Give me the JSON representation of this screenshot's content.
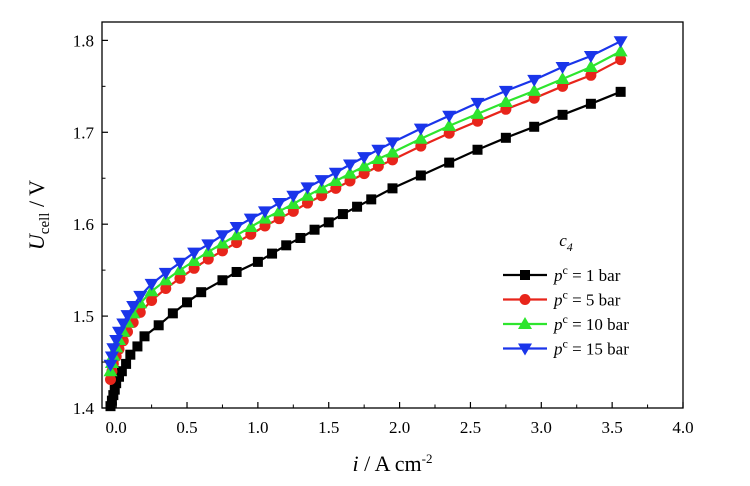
{
  "chart_data": {
    "type": "line",
    "x_axis": {
      "label_main": "i",
      "label_sep": " / ",
      "label_unit": "A cm",
      "label_exp": "-2",
      "range": [
        -0.1,
        4.0
      ],
      "ticks": [
        0.0,
        0.5,
        1.0,
        1.5,
        2.0,
        2.5,
        3.0,
        3.5,
        4.0
      ],
      "tick_labels": [
        "0.0",
        "0.5",
        "1.0",
        "1.5",
        "2.0",
        "2.5",
        "3.0",
        "3.5",
        "4.0"
      ]
    },
    "y_axis": {
      "label_main": "U",
      "label_sub": "cell",
      "label_sep": " / ",
      "label_unit": "V",
      "range": [
        1.4,
        1.82
      ],
      "ticks": [
        1.4,
        1.5,
        1.6,
        1.7,
        1.8
      ],
      "tick_labels": [
        "1.4",
        "1.5",
        "1.6",
        "1.7",
        "1.8"
      ]
    },
    "legend": {
      "title_main": "c",
      "title_sub": "4",
      "placement": "bottom-right"
    },
    "series": [
      {
        "name": "p^c = 1 bar",
        "name_main": "p",
        "name_sup": "c",
        "name_rest": " = 1 bar",
        "color": "#000000",
        "marker": "square",
        "x": [
          -0.04,
          -0.03,
          -0.02,
          -0.01,
          0.0,
          0.02,
          0.04,
          0.07,
          0.1,
          0.15,
          0.2,
          0.3,
          0.4,
          0.5,
          0.6,
          0.75,
          0.85,
          1.0,
          1.1,
          1.2,
          1.3,
          1.4,
          1.5,
          1.6,
          1.7,
          1.8,
          1.95,
          2.15,
          2.35,
          2.55,
          2.75,
          2.95,
          3.15,
          3.35,
          3.56
        ],
        "y": [
          1.402,
          1.408,
          1.414,
          1.42,
          1.427,
          1.434,
          1.44,
          1.448,
          1.458,
          1.467,
          1.478,
          1.49,
          1.503,
          1.515,
          1.526,
          1.539,
          1.548,
          1.559,
          1.568,
          1.577,
          1.585,
          1.594,
          1.602,
          1.611,
          1.619,
          1.627,
          1.639,
          1.653,
          1.667,
          1.681,
          1.694,
          1.706,
          1.719,
          1.731,
          1.744
        ]
      },
      {
        "name": "p^c = 5 bar",
        "name_main": "p",
        "name_sup": "c",
        "name_rest": " = 5 bar",
        "color": "#e8251b",
        "marker": "circle",
        "x": [
          -0.04,
          -0.03,
          -0.02,
          0.0,
          0.02,
          0.05,
          0.08,
          0.12,
          0.17,
          0.25,
          0.35,
          0.45,
          0.55,
          0.65,
          0.75,
          0.85,
          0.95,
          1.05,
          1.15,
          1.25,
          1.35,
          1.45,
          1.55,
          1.65,
          1.75,
          1.85,
          1.95,
          2.15,
          2.35,
          2.55,
          2.75,
          2.95,
          3.15,
          3.35,
          3.56
        ],
        "y": [
          1.431,
          1.44,
          1.448,
          1.456,
          1.464,
          1.473,
          1.483,
          1.493,
          1.504,
          1.517,
          1.53,
          1.541,
          1.552,
          1.562,
          1.571,
          1.58,
          1.589,
          1.598,
          1.606,
          1.614,
          1.623,
          1.631,
          1.639,
          1.647,
          1.655,
          1.663,
          1.67,
          1.685,
          1.699,
          1.712,
          1.725,
          1.737,
          1.75,
          1.762,
          1.779
        ]
      },
      {
        "name": "p^c = 10 bar",
        "name_main": "p",
        "name_sup": "c",
        "name_rest": " = 10 bar",
        "color": "#2ee52e",
        "marker": "triangle-up",
        "x": [
          -0.04,
          -0.03,
          -0.02,
          0.0,
          0.02,
          0.05,
          0.08,
          0.12,
          0.17,
          0.25,
          0.35,
          0.45,
          0.55,
          0.65,
          0.75,
          0.85,
          0.95,
          1.05,
          1.15,
          1.25,
          1.35,
          1.45,
          1.55,
          1.65,
          1.75,
          1.85,
          1.95,
          2.15,
          2.35,
          2.55,
          2.75,
          2.95,
          3.15,
          3.35,
          3.56
        ],
        "y": [
          1.44,
          1.449,
          1.457,
          1.466,
          1.474,
          1.483,
          1.493,
          1.503,
          1.514,
          1.527,
          1.539,
          1.55,
          1.56,
          1.57,
          1.579,
          1.588,
          1.597,
          1.606,
          1.614,
          1.622,
          1.631,
          1.639,
          1.647,
          1.655,
          1.663,
          1.671,
          1.678,
          1.693,
          1.707,
          1.72,
          1.733,
          1.745,
          1.758,
          1.771,
          1.788
        ]
      },
      {
        "name": "p^c = 15 bar",
        "name_main": "p",
        "name_sup": "c",
        "name_rest": " = 15 bar",
        "color": "#1a35ea",
        "marker": "triangle-down",
        "x": [
          -0.04,
          -0.03,
          -0.02,
          0.0,
          0.02,
          0.05,
          0.08,
          0.12,
          0.17,
          0.25,
          0.35,
          0.45,
          0.55,
          0.65,
          0.75,
          0.85,
          0.95,
          1.05,
          1.15,
          1.25,
          1.35,
          1.45,
          1.55,
          1.65,
          1.75,
          1.85,
          1.95,
          2.15,
          2.35,
          2.55,
          2.75,
          2.95,
          3.15,
          3.35,
          3.56
        ],
        "y": [
          1.447,
          1.456,
          1.465,
          1.474,
          1.483,
          1.492,
          1.501,
          1.511,
          1.522,
          1.535,
          1.547,
          1.558,
          1.569,
          1.578,
          1.588,
          1.597,
          1.606,
          1.614,
          1.623,
          1.631,
          1.64,
          1.648,
          1.656,
          1.665,
          1.673,
          1.681,
          1.689,
          1.704,
          1.718,
          1.732,
          1.745,
          1.757,
          1.771,
          1.783,
          1.799
        ]
      }
    ]
  }
}
